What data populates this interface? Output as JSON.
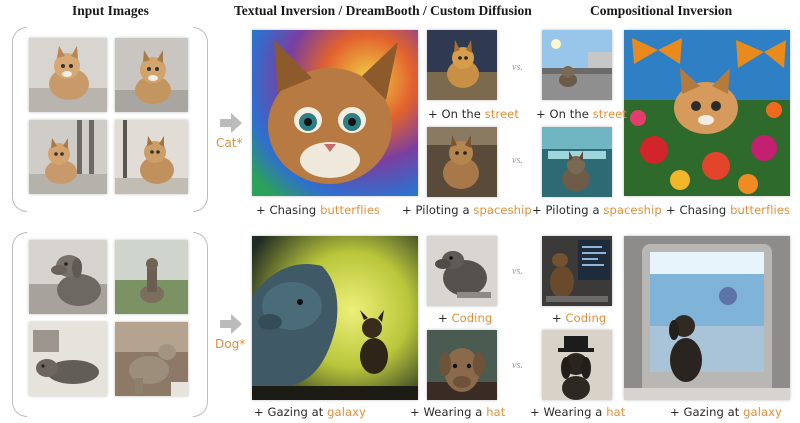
{
  "headers": {
    "input": "Input Images",
    "baseline": "Textual Inversion / DreamBooth / Custom Diffusion",
    "ours": "Compositional Inversion"
  },
  "tokens": {
    "cat": "Cat*",
    "dog": "Dog*"
  },
  "vs": "vs.",
  "captions": {
    "cat_chasing_a": {
      "pre": "+ Chasing ",
      "hl": "butterflies"
    },
    "cat_street_a": {
      "pre": "+ On the ",
      "hl": "street"
    },
    "cat_spaceship_a": {
      "pre": "+ Piloting a ",
      "hl": "spaceship"
    },
    "cat_street_b": {
      "pre": "+ On the ",
      "hl": "street"
    },
    "cat_spaceship_b": {
      "pre": "+ Piloting a ",
      "hl": "spaceship"
    },
    "cat_chasing_b": {
      "pre": "+ Chasing ",
      "hl": "butterflies"
    },
    "dog_coding_a": {
      "pre": "+ ",
      "hl": "Coding"
    },
    "dog_galaxy_a": {
      "pre": "+ Gazing at ",
      "hl": "galaxy"
    },
    "dog_hat_a": {
      "pre": "+ Wearing a ",
      "hl": "hat"
    },
    "dog_coding_b": {
      "pre": "+ ",
      "hl": "Coding"
    },
    "dog_hat_b": {
      "pre": "+ Wearing a ",
      "hl": "hat"
    },
    "dog_galaxy_b": {
      "pre": "+ Gazing at ",
      "hl": "galaxy"
    }
  },
  "colors": {
    "highlight": "#e0903a",
    "bracket": "#bdbdbd",
    "arrow": "#bbbbbb"
  }
}
